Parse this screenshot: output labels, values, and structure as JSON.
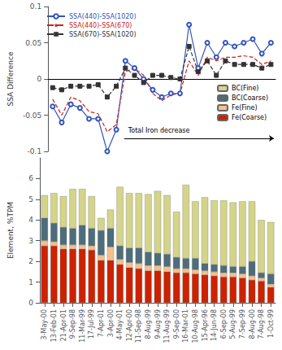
{
  "chart_data": [
    {
      "type": "line",
      "categories": [
        "3-May-00",
        "13-Feb-01",
        "21-Apr-01",
        "9-Sep-98",
        "11-Mar-99",
        "17-Jul-99",
        "7-Apr-01",
        "3-Apr-00",
        "4-May-01",
        "12-Apr-00",
        "11-Sep-98",
        "8-Aug-99",
        "9-Aug-99",
        "11-Aug-99",
        "9-Sep-00",
        "16-Mar-01",
        "10-Aug-98",
        "15-Apr-96",
        "14-Jun-98",
        "6-Sep-00",
        "5-Aug-99",
        "7-Sep-99",
        "8-Aug-00",
        "7-Aug-98",
        "1-Oct-99"
      ],
      "ylabel": "SSA Difference",
      "ylim": [
        -0.1,
        0.1
      ],
      "yticks": [
        -0.1,
        -0.05,
        0,
        0.05,
        0.1
      ],
      "grid": false,
      "legend": "upper left",
      "tick_labels": "y",
      "annotations": [
        "Total Iron decrease"
      ],
      "series": [
        {
          "name": "SSA(440)-SSA(1020)",
          "color": "#3355bb",
          "marker": "circle",
          "line_style": "solid",
          "values": [
            -0.038,
            -0.06,
            -0.035,
            -0.04,
            -0.055,
            -0.055,
            -0.1,
            -0.07,
            0.025,
            0.015,
            0.0,
            -0.015,
            -0.025,
            -0.02,
            -0.02,
            0.075,
            0.015,
            0.05,
            0.03,
            0.05,
            0.045,
            0.05,
            0.055,
            0.035,
            0.05
          ]
        },
        {
          "name": "SSA(440)-SSA(670)",
          "color": "#cc2222",
          "marker": "star",
          "line_style": "dashed",
          "values": [
            -0.028,
            -0.05,
            -0.025,
            -0.03,
            -0.045,
            -0.048,
            -0.073,
            -0.063,
            0.01,
            0.015,
            0.005,
            -0.02,
            -0.03,
            -0.022,
            -0.02,
            0.025,
            0.005,
            0.03,
            0.025,
            0.03,
            0.03,
            0.032,
            0.03,
            0.02,
            0.025
          ]
        },
        {
          "name": "SSA(670)-SSA(1020)",
          "color": "#333333",
          "marker": "square",
          "line_style": "dashed",
          "values": [
            -0.012,
            -0.015,
            -0.01,
            -0.01,
            -0.01,
            -0.008,
            -0.025,
            -0.01,
            0.015,
            0.005,
            -0.005,
            0.005,
            0.005,
            0.002,
            0.0,
            0.045,
            0.01,
            0.025,
            0.005,
            0.025,
            0.02,
            0.02,
            0.02,
            0.015,
            0.02
          ]
        }
      ]
    },
    {
      "type": "bar",
      "stacked": true,
      "categories": [
        "3-May-00",
        "13-Feb-01",
        "21-Apr-01",
        "9-Sep-98",
        "11-Mar-99",
        "17-Jul-99",
        "7-Apr-01",
        "3-Apr-00",
        "4-May-01",
        "12-Apr-00",
        "11-Sep-98",
        "8-Aug-99",
        "9-Aug-99",
        "11-Aug-99",
        "9-Sep-00",
        "16-Mar-01",
        "10-Aug-98",
        "15-Apr-96",
        "14-Jun-98",
        "6-Sep-00",
        "5-Aug-99",
        "7-Sep-99",
        "8-Aug-00",
        "7-Aug-98",
        "1-Oct-99"
      ],
      "ylabel": "Element, %TPM",
      "ylim": [
        0,
        7
      ],
      "yticks": [
        0,
        1,
        2,
        3,
        4,
        5,
        6
      ],
      "grid": false,
      "legend": "lower right",
      "series": [
        {
          "name": "Fe(Coarse)",
          "color": "#cc2200",
          "values": [
            2.75,
            2.75,
            2.6,
            2.6,
            2.6,
            2.55,
            2.05,
            2.05,
            1.85,
            1.7,
            1.65,
            1.55,
            1.55,
            1.5,
            1.45,
            1.45,
            1.4,
            1.35,
            1.3,
            1.25,
            1.25,
            1.2,
            1.1,
            1.05,
            0.75
          ]
        },
        {
          "name": "Fe(Fine)",
          "color": "#f5c08a",
          "values": [
            0.25,
            0.2,
            0.2,
            0.2,
            0.2,
            0.2,
            0.25,
            0.65,
            0.25,
            0.25,
            0.25,
            0.25,
            0.25,
            0.25,
            0.2,
            0.2,
            0.2,
            0.2,
            0.2,
            0.2,
            0.2,
            0.2,
            0.2,
            0.15,
            0.15
          ]
        },
        {
          "name": "BC(Coarse)",
          "color": "#4d6d7a",
          "values": [
            1.1,
            0.9,
            0.85,
            0.8,
            0.95,
            0.85,
            1.2,
            0.9,
            0.65,
            0.7,
            0.75,
            0.65,
            0.6,
            0.6,
            0.55,
            0.5,
            0.55,
            0.35,
            0.35,
            0.35,
            0.3,
            0.35,
            0.7,
            0.25,
            0.5
          ]
        },
        {
          "name": "BC(Fine)",
          "color": "#d4d48a",
          "values": [
            1.1,
            1.45,
            1.5,
            1.9,
            1.75,
            1.55,
            0.6,
            0.9,
            2.85,
            2.65,
            2.65,
            2.8,
            3.0,
            2.85,
            2.2,
            3.55,
            2.75,
            3.2,
            3.1,
            3.15,
            3.1,
            3.15,
            2.9,
            2.55,
            2.5
          ]
        }
      ]
    }
  ]
}
